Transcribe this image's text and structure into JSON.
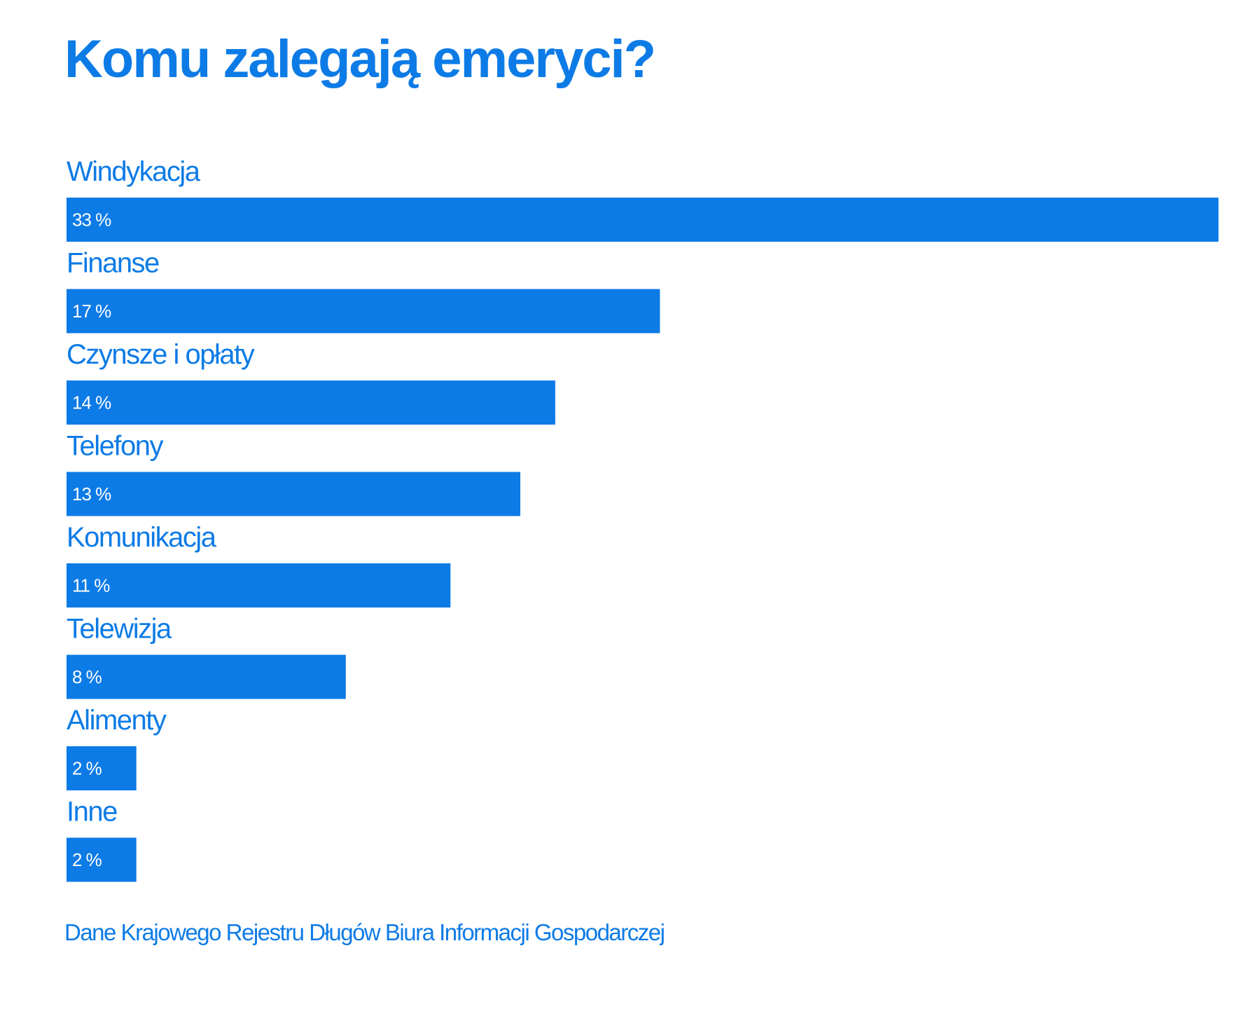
{
  "chart_data": {
    "type": "bar",
    "orientation": "horizontal",
    "title": "Komu zalegają emeryci?",
    "categories": [
      "Windykacja",
      "Finanse",
      "Czynsze i opłaty",
      "Telefony",
      "Komunikacja",
      "Telewizja",
      "Alimenty",
      "Inne"
    ],
    "values": [
      33,
      17,
      14,
      13,
      11,
      8,
      2,
      2
    ],
    "value_labels": [
      "33 %",
      "17 %",
      "14 %",
      "13 %",
      "11 %",
      "8 %",
      "2 %",
      "2 %"
    ],
    "unit": "%",
    "xlim": [
      0,
      33
    ],
    "grid": false,
    "legend": "none",
    "source": "Dane Krajowego Rejestru Długów Biura Informacji Gospodarczej"
  },
  "colors": {
    "accent": "#0d7be6",
    "bar": "#0d7be6",
    "bar_text": "#ffffff",
    "background": "#ffffff"
  }
}
